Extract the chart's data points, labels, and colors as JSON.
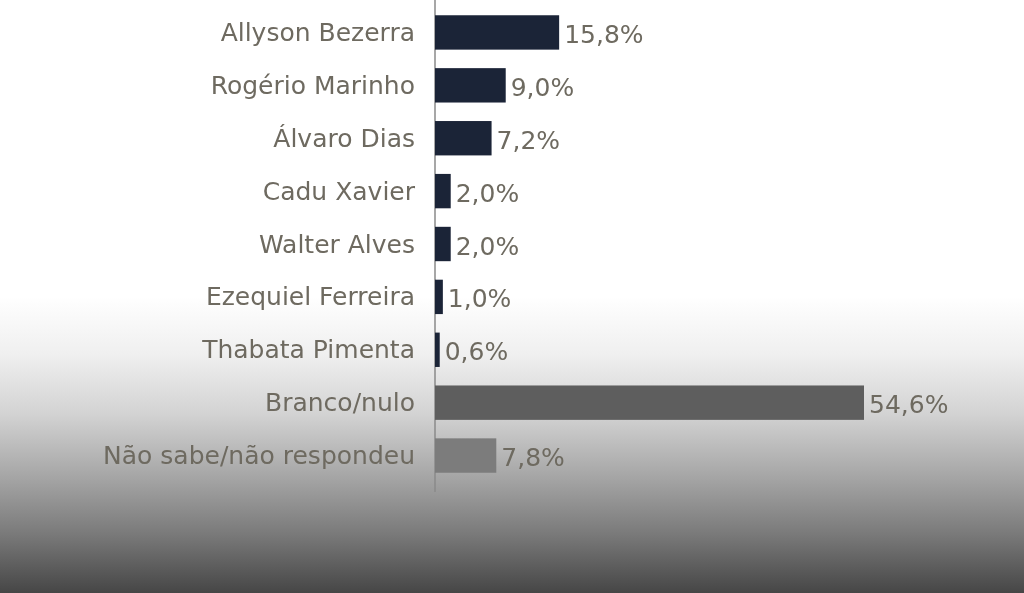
{
  "chart_data": {
    "type": "bar",
    "orientation": "horizontal",
    "categories": [
      "Allyson Bezerra",
      "Rogério Marinho",
      "Álvaro Dias",
      "Cadu Xavier",
      "Walter Alves",
      "Ezequiel Ferreira",
      "Thabata Pimenta",
      "Branco/nulo",
      "Não sabe/não respondeu"
    ],
    "values": [
      15.8,
      9.0,
      7.2,
      2.0,
      2.0,
      1.0,
      0.6,
      54.6,
      7.8
    ],
    "colors": [
      "#1b2437",
      "#1b2437",
      "#1b2437",
      "#1b2437",
      "#1b2437",
      "#1b2437",
      "#1b2437",
      "#5e5e5e",
      "#7c7c7c"
    ],
    "value_labels": [
      "15,8%",
      "9,0%",
      "7,2%",
      "2,0%",
      "2,0%",
      "1,0%",
      "0,6%",
      "54,6%",
      "7,8%"
    ],
    "tick_labels": "y"
  }
}
